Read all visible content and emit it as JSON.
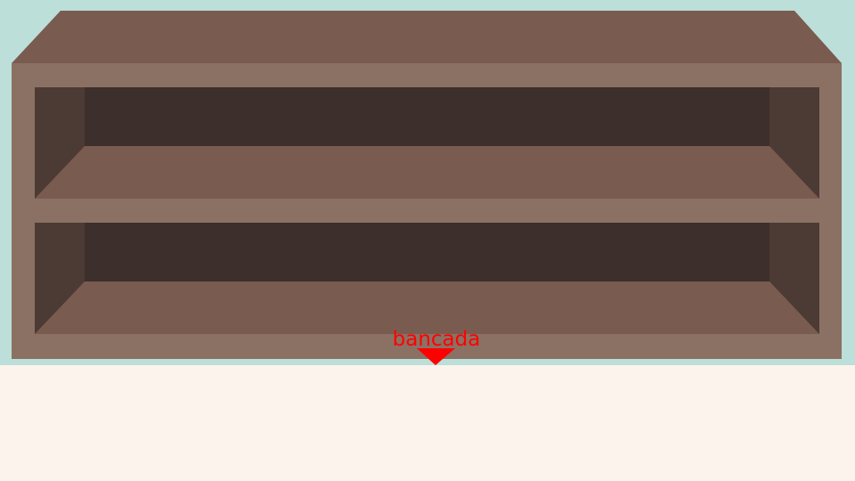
{
  "scene": {
    "wall_color": "#bcdfd9",
    "floor_color": "#fcf4ec"
  },
  "shelf": {
    "frame_color": "#8b7164",
    "top_color": "#7a5b50",
    "back_color": "#3d2f2b",
    "side_color": "#4c3b34",
    "floor_color": "#7a5b50",
    "compartments": 2
  },
  "marker": {
    "label": "bancada",
    "color": "#ff0000"
  }
}
